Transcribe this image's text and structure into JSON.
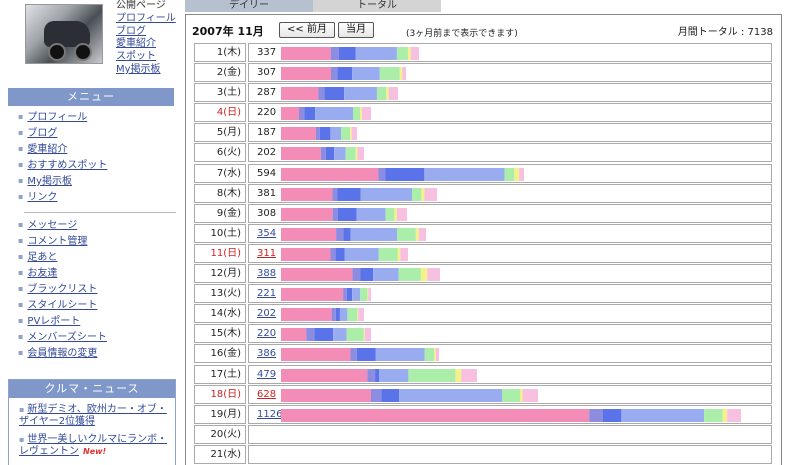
{
  "sidebar": {
    "profile_links": {
      "header": "公開ページ",
      "items": [
        "プロフィール",
        "ブログ",
        "愛車紹介",
        "スポット",
        "My掲示板"
      ]
    },
    "menu": {
      "title": "メニュー",
      "group1": [
        "プロフィール",
        "ブログ",
        "愛車紹介",
        "おすすめスポット",
        "My掲示板",
        "リンク"
      ],
      "group2": [
        "メッセージ",
        "コメント管理",
        "足あと",
        "お友達",
        "ブラックリスト",
        "スタイルシート",
        "PVレポート",
        "メンバーズシート",
        "会員情報の変更"
      ]
    },
    "news": {
      "title": "クルマ・ニュース",
      "items": [
        "新型デミオ、欧州カー・オブ・ザイヤー2位獲得",
        "世界一美しいクルマにランボ・レヴェントン"
      ],
      "new_badge": "New!"
    }
  },
  "main": {
    "tabs": {
      "daily": "デイリー",
      "total": "トータル"
    },
    "month_title": "2007年 11月",
    "prev_button": "<< 前月",
    "current_button": "当月",
    "note": "(3ヶ月前まで表示できます)",
    "monthly_total": "月間トータル : 7138",
    "colors": {
      "pink": "#f48cb8",
      "lavender": "#8c8ce0",
      "blue": "#5a73e8",
      "periwinkle": "#9aacf0",
      "green": "#aaeeaa",
      "yellow": "#f4f08a",
      "lightpink": "#f8c0e0"
    },
    "max_value": 1126,
    "rows": [
      {
        "date": "1(木)",
        "count": "337",
        "sun": false,
        "link": false,
        "segments": [
          0.36,
          0.06,
          0.12,
          0.3,
          0.08,
          0.02,
          0.06
        ]
      },
      {
        "date": "2(金)",
        "count": "307",
        "sun": false,
        "link": false,
        "segments": [
          0.4,
          0.05,
          0.12,
          0.22,
          0.16,
          0.02,
          0.03
        ]
      },
      {
        "date": "3(土)",
        "count": "287",
        "sun": false,
        "link": false,
        "segments": [
          0.32,
          0.05,
          0.17,
          0.28,
          0.08,
          0.02,
          0.08
        ]
      },
      {
        "date": "4(日)",
        "count": "220",
        "sun": true,
        "link": false,
        "segments": [
          0.2,
          0.06,
          0.12,
          0.42,
          0.08,
          0.02,
          0.1
        ]
      },
      {
        "date": "5(月)",
        "count": "187",
        "sun": false,
        "link": false,
        "segments": [
          0.46,
          0.05,
          0.14,
          0.14,
          0.12,
          0.02,
          0.07
        ]
      },
      {
        "date": "6(火)",
        "count": "202",
        "sun": false,
        "link": false,
        "segments": [
          0.48,
          0.06,
          0.1,
          0.14,
          0.12,
          0.02,
          0.08
        ]
      },
      {
        "date": "7(水)",
        "count": "594",
        "sun": false,
        "link": false,
        "segments": [
          0.4,
          0.03,
          0.16,
          0.33,
          0.04,
          0.02,
          0.02
        ]
      },
      {
        "date": "8(木)",
        "count": "381",
        "sun": false,
        "link": false,
        "segments": [
          0.33,
          0.03,
          0.15,
          0.33,
          0.06,
          0.02,
          0.08
        ]
      },
      {
        "date": "9(金)",
        "count": "308",
        "sun": false,
        "link": false,
        "segments": [
          0.41,
          0.04,
          0.15,
          0.23,
          0.07,
          0.02,
          0.08
        ]
      },
      {
        "date": "10(土)",
        "count": "354",
        "sun": false,
        "link": true,
        "segments": [
          0.38,
          0.05,
          0.05,
          0.32,
          0.13,
          0.02,
          0.05
        ]
      },
      {
        "date": "11(日)",
        "count": "311",
        "sun": true,
        "link": true,
        "segments": [
          0.39,
          0.04,
          0.07,
          0.27,
          0.15,
          0.02,
          0.06
        ]
      },
      {
        "date": "12(月)",
        "count": "388",
        "sun": false,
        "link": true,
        "segments": [
          0.45,
          0.05,
          0.08,
          0.16,
          0.14,
          0.04,
          0.08
        ]
      },
      {
        "date": "13(火)",
        "count": "221",
        "sun": false,
        "link": true,
        "segments": [
          0.69,
          0.04,
          0.06,
          0.09,
          0.08,
          0.01,
          0.03
        ]
      },
      {
        "date": "14(水)",
        "count": "202",
        "sun": false,
        "link": true,
        "segments": [
          0.61,
          0.05,
          0.05,
          0.09,
          0.12,
          0.01,
          0.07
        ]
      },
      {
        "date": "15(木)",
        "count": "220",
        "sun": false,
        "link": true,
        "segments": [
          0.28,
          0.09,
          0.21,
          0.15,
          0.19,
          0.01,
          0.07
        ]
      },
      {
        "date": "16(金)",
        "count": "386",
        "sun": false,
        "link": true,
        "segments": [
          0.44,
          0.04,
          0.12,
          0.31,
          0.06,
          0.01,
          0.02
        ]
      },
      {
        "date": "17(土)",
        "count": "479",
        "sun": false,
        "link": true,
        "segments": [
          0.44,
          0.04,
          0.02,
          0.15,
          0.24,
          0.03,
          0.08
        ]
      },
      {
        "date": "18(日)",
        "count": "628",
        "sun": true,
        "link": true,
        "segments": [
          0.35,
          0.04,
          0.07,
          0.4,
          0.07,
          0.01,
          0.06
        ]
      },
      {
        "date": "19(月)",
        "count": "1126",
        "sun": false,
        "link": true,
        "segments": [
          0.67,
          0.03,
          0.04,
          0.18,
          0.04,
          0.01,
          0.07
        ]
      },
      {
        "date": "20(火)",
        "count": "",
        "sun": false,
        "link": false,
        "segments": []
      },
      {
        "date": "21(水)",
        "count": "",
        "sun": false,
        "link": false,
        "segments": []
      }
    ]
  }
}
